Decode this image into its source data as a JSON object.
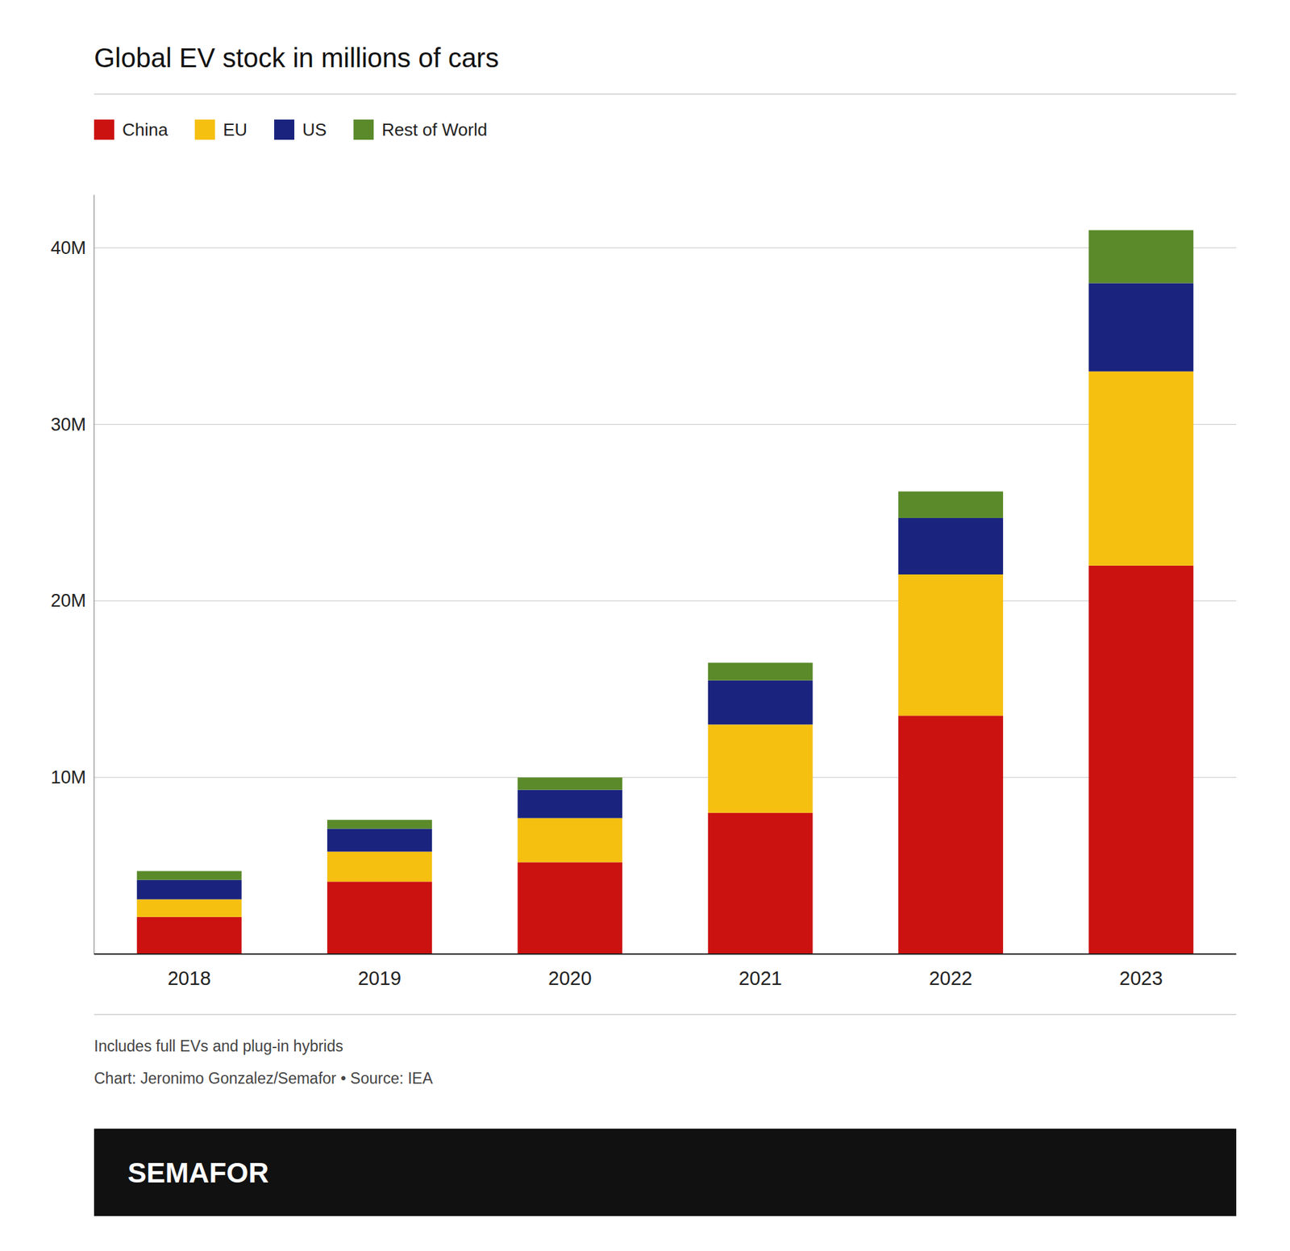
{
  "chart_data": {
    "type": "bar",
    "stacked": true,
    "title": "Global EV stock in millions of cars",
    "categories": [
      "2018",
      "2019",
      "2020",
      "2021",
      "2022",
      "2023"
    ],
    "series": [
      {
        "name": "China",
        "color": "#cc1111",
        "values": [
          2.1,
          4.1,
          5.2,
          8.0,
          13.5,
          22.0
        ]
      },
      {
        "name": "EU",
        "color": "#f5c010",
        "values": [
          1.0,
          1.7,
          2.5,
          5.0,
          8.0,
          11.0
        ]
      },
      {
        "name": "US",
        "color": "#1a237e",
        "values": [
          1.1,
          1.3,
          1.6,
          2.5,
          3.2,
          5.0
        ]
      },
      {
        "name": "Rest of World",
        "color": "#5a8a2a",
        "values": [
          0.5,
          0.5,
          0.7,
          1.0,
          1.5,
          3.0
        ]
      }
    ],
    "ylim": [
      0,
      43
    ],
    "yticks": [
      {
        "value": 10,
        "label": "10M"
      },
      {
        "value": 20,
        "label": "20M"
      },
      {
        "value": 30,
        "label": "30M"
      },
      {
        "value": 40,
        "label": "40M"
      }
    ],
    "grid": true,
    "legend": "top",
    "notes": [
      "Includes full EVs and plug-in hybrids",
      "Chart: Jeronimo Gonzalez/Semafor • Source: IEA"
    ],
    "branding": "SEMAFOR"
  }
}
